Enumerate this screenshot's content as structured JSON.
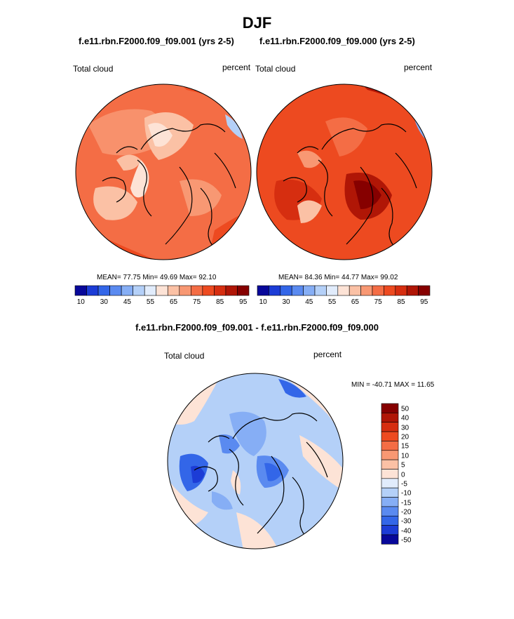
{
  "figure": {
    "title": "DJF",
    "left_panel": {
      "case": "f.e11.rbn.F2000.f09_f09.001 (yrs 2-5)",
      "variable": "Total cloud",
      "units": "percent",
      "stats": "MEAN=  77.75  Min=  49.69  Max=  92.10"
    },
    "right_panel": {
      "case": "f.e11.rbn.F2000.f09_f09.000 (yrs 2-5)",
      "variable": "Total cloud",
      "units": "percent",
      "stats": "MEAN=  84.36  Min=  44.77  Max=  99.02"
    },
    "diff_panel": {
      "title": "f.e11.rbn.F2000.f09_f09.001 - f.e11.rbn.F2000.f09_f09.000",
      "variable": "Total cloud",
      "units": "percent",
      "minmax": "MIN = -40.71 MAX =  11.65"
    },
    "abs_colorbar": {
      "colors": [
        "#08089a",
        "#1c3cd6",
        "#3366e8",
        "#5a8af0",
        "#86aef5",
        "#b4d0f8",
        "#e1ecfc",
        "#fde3d6",
        "#fbc1a5",
        "#f89873",
        "#f46d45",
        "#ed4a20",
        "#d62e10",
        "#b01606",
        "#860000"
      ],
      "tick_labels": [
        "10",
        "30",
        "45",
        "55",
        "65",
        "75",
        "85",
        "95"
      ]
    },
    "diff_colorbar": {
      "colors": [
        "#860000",
        "#b01606",
        "#d62e10",
        "#ed4a20",
        "#f46d45",
        "#f89873",
        "#fbc1a5",
        "#fde3d6",
        "#e1ecfc",
        "#b4d0f8",
        "#86aef5",
        "#5a8af0",
        "#3366e8",
        "#1c3cd6",
        "#08089a"
      ],
      "tick_labels": [
        "50",
        "40",
        "30",
        "20",
        "15",
        "10",
        "5",
        "0",
        "-5",
        "-10",
        "-15",
        "-20",
        "-30",
        "-40",
        "-50"
      ]
    }
  }
}
